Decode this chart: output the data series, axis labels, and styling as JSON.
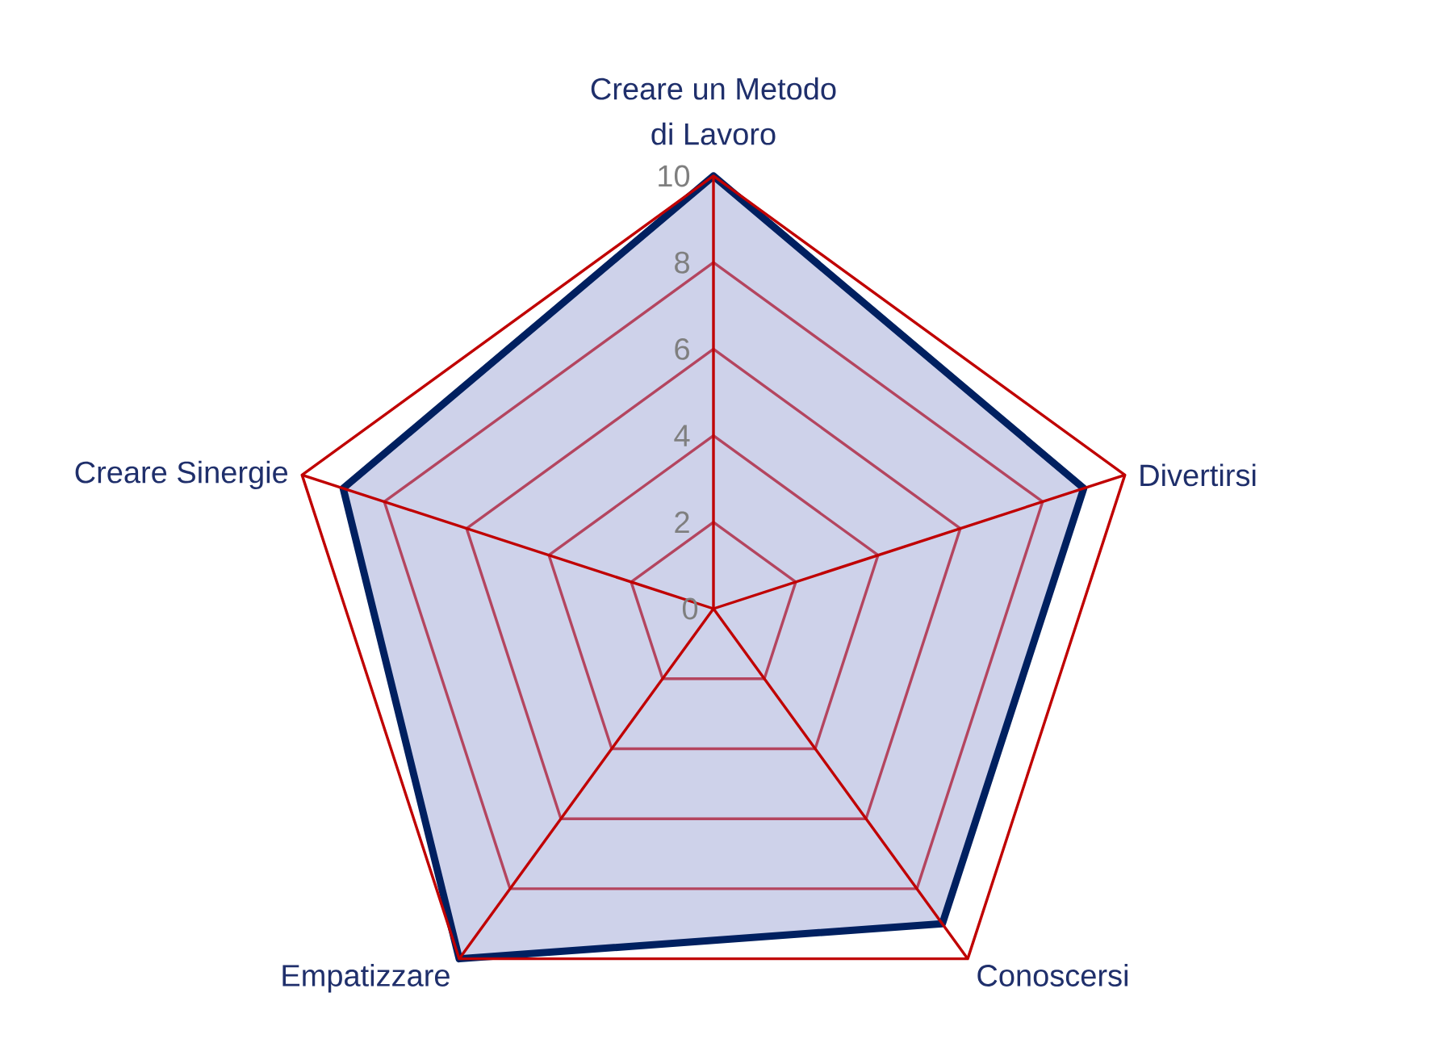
{
  "chart_data": {
    "type": "radar",
    "categories": [
      "Creare un Metodo di Lavoro",
      "Divertirsi",
      "Conoscersi",
      "Empatizzare",
      "Creare Sinergie"
    ],
    "series": [
      {
        "color": "#002060",
        "values": [
          10,
          9,
          9,
          10,
          9
        ]
      }
    ],
    "ylim": [
      0,
      10
    ],
    "yticks": [
      0,
      2,
      4,
      6,
      8,
      10
    ],
    "grid": true
  }
}
